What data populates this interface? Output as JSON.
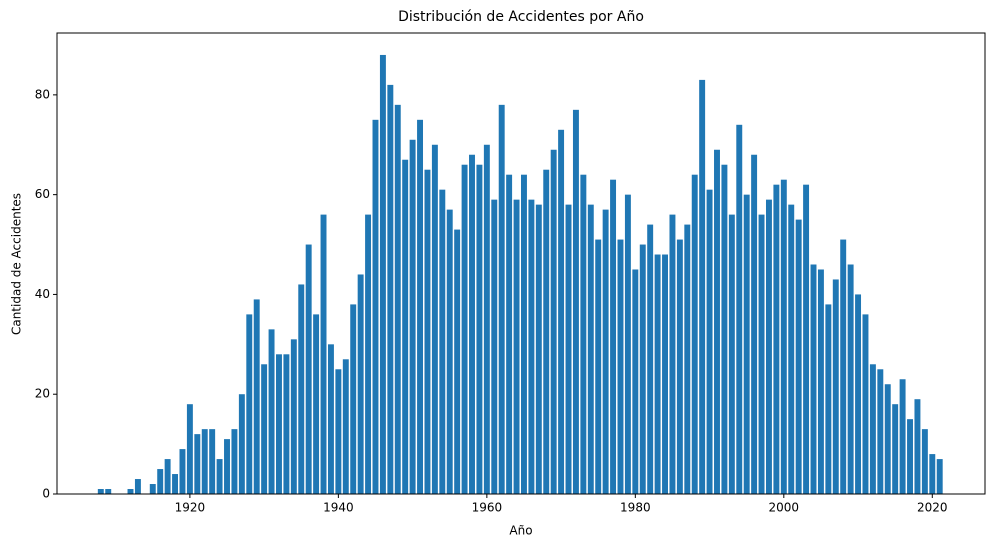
{
  "chart_data": {
    "type": "bar",
    "title": "Distribución de Accidentes por Año",
    "x_label": "Año",
    "y_label": "Cantidad de Accidentes",
    "color": "#1f77b4",
    "x": [
      1908,
      1909,
      1912,
      1913,
      1915,
      1916,
      1917,
      1918,
      1919,
      1920,
      1921,
      1922,
      1923,
      1924,
      1925,
      1926,
      1927,
      1928,
      1929,
      1930,
      1931,
      1932,
      1933,
      1934,
      1935,
      1936,
      1937,
      1938,
      1939,
      1940,
      1941,
      1942,
      1943,
      1944,
      1945,
      1946,
      1947,
      1948,
      1949,
      1950,
      1951,
      1952,
      1953,
      1954,
      1955,
      1956,
      1957,
      1958,
      1959,
      1960,
      1961,
      1962,
      1963,
      1964,
      1965,
      1966,
      1967,
      1968,
      1969,
      1970,
      1971,
      1972,
      1973,
      1974,
      1975,
      1976,
      1977,
      1978,
      1979,
      1980,
      1981,
      1982,
      1983,
      1984,
      1985,
      1986,
      1987,
      1988,
      1989,
      1990,
      1991,
      1992,
      1993,
      1994,
      1995,
      1996,
      1997,
      1998,
      1999,
      2000,
      2001,
      2002,
      2003,
      2004,
      2005,
      2006,
      2007,
      2008,
      2009,
      2010,
      2011,
      2012,
      2013,
      2014,
      2015,
      2016,
      2017,
      2018,
      2019,
      2020,
      2021
    ],
    "values": [
      1,
      1,
      1,
      3,
      2,
      5,
      7,
      4,
      9,
      18,
      12,
      13,
      13,
      7,
      11,
      13,
      20,
      36,
      39,
      26,
      33,
      28,
      28,
      31,
      42,
      50,
      36,
      56,
      30,
      25,
      27,
      38,
      44,
      56,
      75,
      88,
      82,
      78,
      67,
      71,
      75,
      65,
      70,
      61,
      57,
      53,
      66,
      68,
      66,
      70,
      59,
      78,
      64,
      59,
      64,
      59,
      58,
      65,
      69,
      73,
      58,
      77,
      64,
      58,
      51,
      57,
      63,
      51,
      60,
      45,
      50,
      54,
      48,
      48,
      56,
      51,
      54,
      64,
      83,
      61,
      69,
      66,
      56,
      74,
      60,
      68,
      56,
      59,
      62,
      63,
      58,
      55,
      62,
      46,
      45,
      38,
      43,
      51,
      46,
      40,
      36,
      26,
      25,
      22,
      18,
      23,
      15,
      19,
      13,
      8,
      7
    ],
    "xlim": [
      1902.1,
      2027.1
    ],
    "xticks": [
      1920,
      1940,
      1960,
      1980,
      2000,
      2020
    ],
    "ylim": [
      0,
      92.4
    ],
    "yticks": [
      0,
      20,
      40,
      60,
      80
    ]
  }
}
